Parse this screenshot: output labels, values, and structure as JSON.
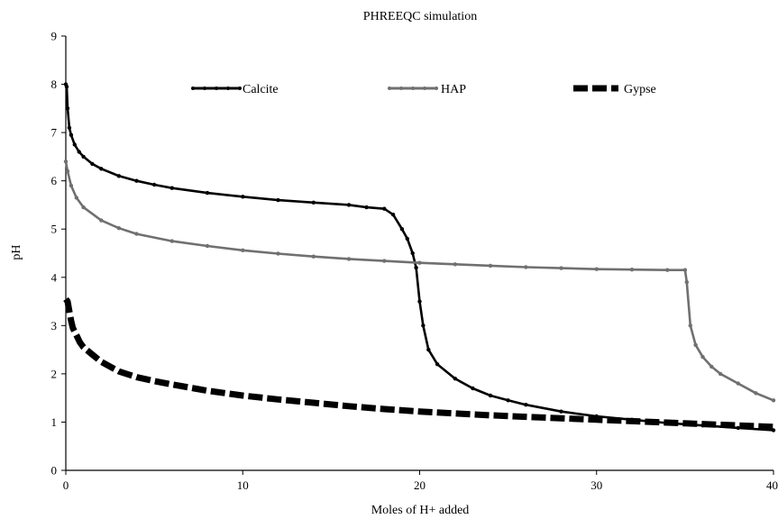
{
  "chart_data": {
    "type": "line",
    "title": "PHREEQC simulation",
    "xlabel": "Moles of H+ added",
    "ylabel": "pH",
    "xlim": [
      0,
      40
    ],
    "ylim": [
      0,
      9
    ],
    "xticks": [
      0,
      10,
      20,
      30,
      40
    ],
    "yticks": [
      0,
      1,
      2,
      3,
      4,
      5,
      6,
      7,
      8,
      9
    ],
    "grid": false,
    "legend_position": "top",
    "series": [
      {
        "name": "Calcite",
        "color": "#000000",
        "style": "solid-markers",
        "x": [
          0,
          0.05,
          0.1,
          0.2,
          0.3,
          0.5,
          0.75,
          1,
          1.5,
          2,
          3,
          4,
          5,
          6,
          8,
          10,
          12,
          14,
          16,
          17,
          18,
          18.5,
          19,
          19.3,
          19.6,
          19.8,
          20,
          20.2,
          20.5,
          21,
          22,
          23,
          24,
          25,
          26,
          28,
          30,
          32,
          34,
          36,
          38,
          40
        ],
        "y": [
          8.0,
          7.95,
          7.5,
          7.1,
          6.95,
          6.75,
          6.6,
          6.5,
          6.35,
          6.25,
          6.1,
          6.0,
          5.92,
          5.85,
          5.75,
          5.67,
          5.6,
          5.55,
          5.5,
          5.45,
          5.42,
          5.3,
          5.0,
          4.8,
          4.5,
          4.2,
          3.5,
          3.0,
          2.5,
          2.2,
          1.9,
          1.7,
          1.55,
          1.45,
          1.36,
          1.22,
          1.12,
          1.05,
          0.98,
          0.93,
          0.88,
          0.83
        ]
      },
      {
        "name": "HAP",
        "color": "#707070",
        "style": "solid-markers",
        "x": [
          0,
          0.1,
          0.3,
          0.6,
          1,
          2,
          3,
          4,
          6,
          8,
          10,
          12,
          14,
          16,
          18,
          20,
          22,
          24,
          26,
          28,
          30,
          32,
          34,
          35,
          35.1,
          35.3,
          35.6,
          36,
          36.5,
          37,
          38,
          39,
          40
        ],
        "y": [
          6.4,
          6.2,
          5.9,
          5.65,
          5.45,
          5.18,
          5.02,
          4.9,
          4.75,
          4.65,
          4.56,
          4.49,
          4.43,
          4.38,
          4.34,
          4.3,
          4.27,
          4.24,
          4.21,
          4.19,
          4.17,
          4.16,
          4.15,
          4.15,
          3.9,
          3.0,
          2.6,
          2.35,
          2.15,
          2.0,
          1.8,
          1.6,
          1.45
        ]
      },
      {
        "name": "Gypse",
        "color": "#000000",
        "style": "dashed-thick",
        "x": [
          0,
          0.1,
          0.2,
          0.3,
          0.4,
          0.6,
          0.8,
          1,
          1.5,
          2,
          3,
          4,
          5,
          6,
          8,
          10,
          12,
          14,
          16,
          18,
          20,
          22,
          24,
          26,
          28,
          30,
          32,
          34,
          36,
          38,
          40
        ],
        "y": [
          3.55,
          3.5,
          3.3,
          3.1,
          2.95,
          2.8,
          2.65,
          2.55,
          2.4,
          2.25,
          2.05,
          1.93,
          1.85,
          1.78,
          1.65,
          1.55,
          1.47,
          1.4,
          1.33,
          1.27,
          1.22,
          1.18,
          1.14,
          1.11,
          1.08,
          1.05,
          1.02,
          0.99,
          0.96,
          0.93,
          0.9
        ]
      }
    ]
  }
}
